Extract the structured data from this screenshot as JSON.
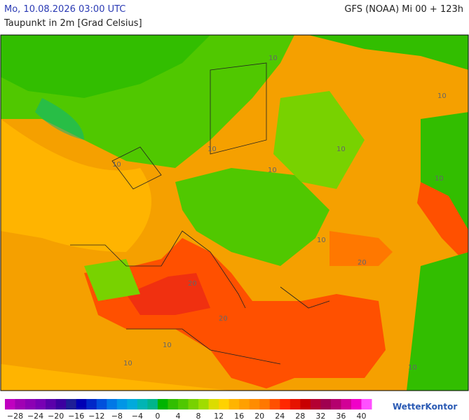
{
  "header": {
    "date": "Mo, 10.08.2026 03:00 UTC",
    "parameter": "Taupunkt in 2m [Grad Celsius]",
    "model": "GFS (NOAA) Mi 00 + 123h"
  },
  "map": {
    "contour_labels": [
      "10",
      "10",
      "10",
      "10",
      "10",
      "10",
      "10",
      "10",
      "10",
      "20",
      "20",
      "20",
      "10",
      "10"
    ]
  },
  "colorbar": {
    "colors": [
      "#c000c0",
      "#a000b4",
      "#8c00b4",
      "#7800b4",
      "#5a00aa",
      "#3c00a0",
      "#1e1e96",
      "#0000b4",
      "#0028c8",
      "#0050dc",
      "#0078e6",
      "#0096e6",
      "#00aadc",
      "#00b4b4",
      "#00b48c",
      "#00b400",
      "#32be00",
      "#50c800",
      "#78d200",
      "#a0dc00",
      "#dcdc00",
      "#ffd200",
      "#ffb400",
      "#ffa000",
      "#ff8c00",
      "#ff7800",
      "#ff5000",
      "#ff2800",
      "#e61400",
      "#c80000",
      "#b40032",
      "#a00050",
      "#b4006e",
      "#d20096",
      "#f000c8",
      "#ff50ff"
    ],
    "labels": [
      "−28",
      "−24",
      "−20",
      "−16",
      "−12",
      "−8",
      "−4",
      "0",
      "4",
      "8",
      "12",
      "16",
      "20",
      "24",
      "28",
      "32",
      "36",
      "40"
    ]
  },
  "logo": "WetterKontor"
}
